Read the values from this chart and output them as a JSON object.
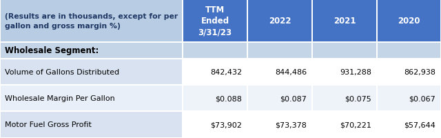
{
  "header_col0": "(Results are in thousands, except for per\ngallon and gross margin %)",
  "header_cols": [
    "TTM\nEnded\n3/31/23",
    "2022",
    "2021",
    "2020"
  ],
  "section_label": "Wholesale Segment:",
  "rows": [
    [
      "Volume of Gallons Distributed",
      "842,432",
      "844,486",
      "931,288",
      "862,938"
    ],
    [
      "Wholesale Margin Per Gallon",
      "$0.088",
      "$0.087",
      "$0.075",
      "$0.067"
    ],
    [
      "Motor Fuel Gross Profit",
      "$73,902",
      "$73,378",
      "$70,221",
      "$57,644"
    ]
  ],
  "header_bg": "#4472C4",
  "header_text_color": "#FFFFFF",
  "col0_header_bg": "#B8CCE4",
  "col0_data_bg_even": "#D9E2F0",
  "col0_data_bg_odd": "#E9EFF8",
  "data_bg_even": "#FFFFFF",
  "data_bg_odd": "#EEF3FA",
  "section_bg": "#C5D5E8",
  "border_color": "#FFFFFF",
  "fig_width": 6.4,
  "fig_height": 2.01,
  "dpi": 100
}
